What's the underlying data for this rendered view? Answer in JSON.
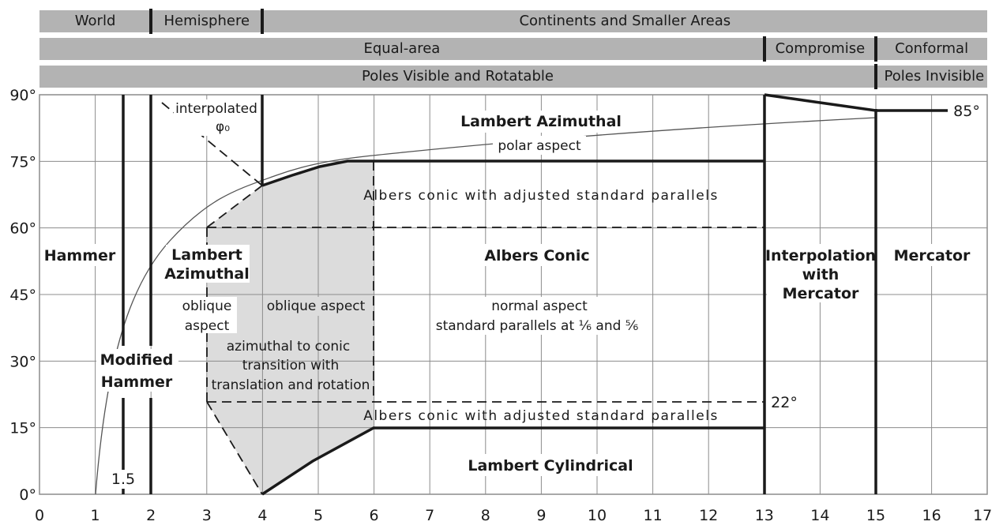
{
  "header_rows": [
    {
      "cells": [
        {
          "label": "World",
          "from": 0,
          "to": 2
        },
        {
          "label": "Hemisphere",
          "from": 2,
          "to": 4
        },
        {
          "label": "Continents and Smaller Areas",
          "from": 4,
          "to": 17
        }
      ]
    },
    {
      "cells": [
        {
          "label": "Equal-area",
          "from": 0,
          "to": 13
        },
        {
          "label": "Compromise",
          "from": 13,
          "to": 15
        },
        {
          "label": "Conformal",
          "from": 15,
          "to": 17
        }
      ]
    },
    {
      "cells": [
        {
          "label": "Poles Visible and Rotatable",
          "from": 0,
          "to": 15
        },
        {
          "label": "Poles Invisible",
          "from": 15,
          "to": 17
        }
      ]
    }
  ],
  "x_ticks": [
    "0",
    "1",
    "2",
    "3",
    "4",
    "5",
    "6",
    "7",
    "8",
    "9",
    "10",
    "11",
    "12",
    "13",
    "14",
    "15",
    "16",
    "17"
  ],
  "y_ticks": [
    "0°",
    "15°",
    "30°",
    "45°",
    "60°",
    "75°",
    "90°"
  ],
  "regions": {
    "hammer": "Hammer",
    "modified_hammer_1": "Modified",
    "modified_hammer_2": "Hammer",
    "lambert_azimuthal_1": "Lambert",
    "lambert_azimuthal_2": "Azimuthal",
    "oblique_aspect_1": "oblique",
    "oblique_aspect_2": "aspect",
    "oblique_aspect_right": "oblique aspect",
    "transition_1": "azimuthal to conic",
    "transition_2": "transition with",
    "transition_3": "translation and rotation",
    "lambert_azimuthal_polar": "Lambert Azimuthal",
    "polar_aspect": "polar aspect",
    "albers_adjusted_top": "Albers conic with adjusted standard parallels",
    "albers_conic": "Albers Conic",
    "normal_aspect": "normal aspect",
    "standard_parallels": "standard parallels at ⅙ and ⅚",
    "albers_adjusted_bottom": "Albers conic with adjusted standard parallels",
    "lambert_cylindrical": "Lambert Cylindrical",
    "interpolation_1": "Interpolation",
    "interpolation_2": "with",
    "interpolation_3": "Mercator",
    "mercator": "Mercator",
    "interpolated_1": "interpolated",
    "interpolated_2": "φ₀",
    "label_85": "85°",
    "label_22": "22°",
    "label_1_5": "1.5"
  },
  "colors": {
    "band": "#b3b3b3",
    "shade": "#dcdcdc",
    "grid": "#8c8c8c",
    "line": "#1a1a1a"
  }
}
